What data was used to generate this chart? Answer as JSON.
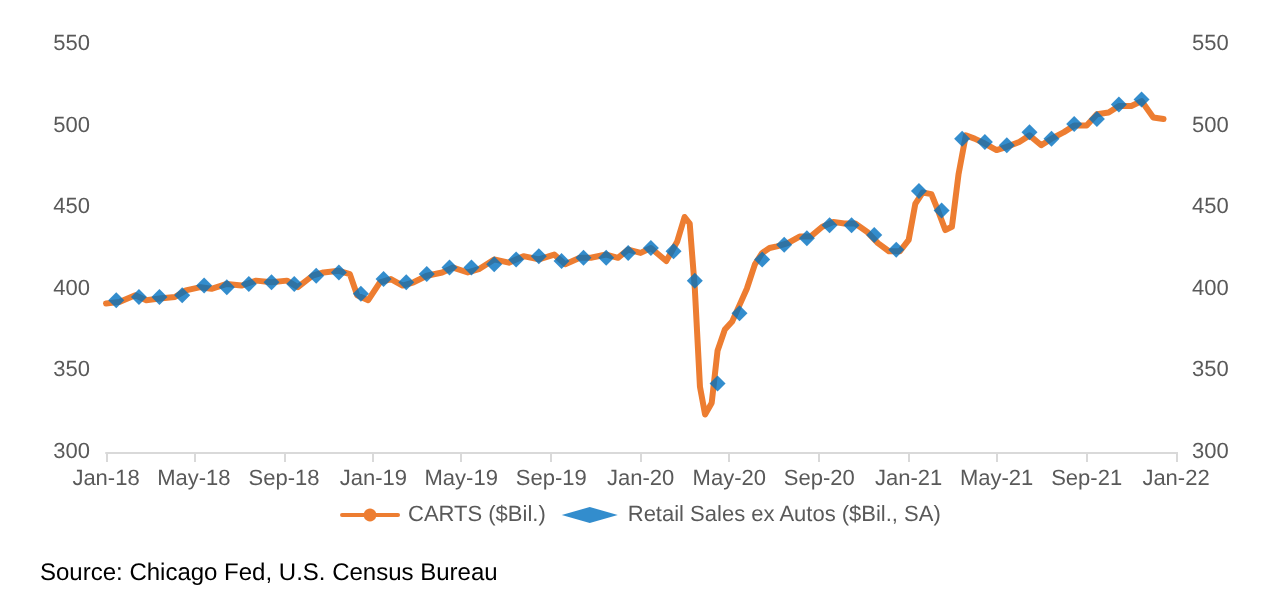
{
  "chart_data": {
    "type": "line",
    "xlim": [
      "2018-01",
      "2022-01"
    ],
    "xticks": [
      {
        "value": "2018-01",
        "label": "Jan-18"
      },
      {
        "value": "2018-05",
        "label": "May-18"
      },
      {
        "value": "2018-09",
        "label": "Sep-18"
      },
      {
        "value": "2019-01",
        "label": "Jan-19"
      },
      {
        "value": "2019-05",
        "label": "May-19"
      },
      {
        "value": "2019-09",
        "label": "Sep-19"
      },
      {
        "value": "2020-01",
        "label": "Jan-20"
      },
      {
        "value": "2020-05",
        "label": "May-20"
      },
      {
        "value": "2020-09",
        "label": "Sep-20"
      },
      {
        "value": "2021-01",
        "label": "Jan-21"
      },
      {
        "value": "2021-05",
        "label": "May-21"
      },
      {
        "value": "2021-09",
        "label": "Sep-21"
      },
      {
        "value": "2022-01",
        "label": "Jan-22"
      }
    ],
    "ylim": [
      300,
      550
    ],
    "yticks": [
      300,
      350,
      400,
      450,
      500,
      550
    ],
    "y2lim": [
      300,
      550
    ],
    "y2ticks": [
      300,
      350,
      400,
      450,
      500,
      550
    ],
    "grid": false,
    "legend": "bottom",
    "annotations": [
      "Source: Chicago Fed, U.S. Census Bureau"
    ],
    "series": [
      {
        "name": "CARTS ($Bil.)",
        "color": "#ed7d31",
        "marker": "none",
        "x": [
          "2018-01-01",
          "2018-01-20",
          "2018-02-10",
          "2018-02-25",
          "2018-03-15",
          "2018-04-05",
          "2018-04-20",
          "2018-05-10",
          "2018-05-25",
          "2018-06-15",
          "2018-07-05",
          "2018-07-25",
          "2018-08-15",
          "2018-09-05",
          "2018-09-20",
          "2018-10-10",
          "2018-10-25",
          "2018-11-15",
          "2018-11-30",
          "2018-12-10",
          "2018-12-25",
          "2019-01-10",
          "2019-01-25",
          "2019-02-10",
          "2019-02-25",
          "2019-03-15",
          "2019-04-05",
          "2019-04-20",
          "2019-05-10",
          "2019-05-25",
          "2019-06-15",
          "2019-07-05",
          "2019-07-25",
          "2019-08-15",
          "2019-09-05",
          "2019-09-20",
          "2019-10-10",
          "2019-10-25",
          "2019-11-15",
          "2019-12-01",
          "2019-12-15",
          "2020-01-01",
          "2020-01-15",
          "2020-02-05",
          "2020-02-20",
          "2020-03-01",
          "2020-03-08",
          "2020-03-15",
          "2020-03-22",
          "2020-03-29",
          "2020-04-07",
          "2020-04-15",
          "2020-04-25",
          "2020-05-05",
          "2020-05-15",
          "2020-05-25",
          "2020-06-05",
          "2020-06-15",
          "2020-06-25",
          "2020-07-05",
          "2020-07-20",
          "2020-08-05",
          "2020-08-20",
          "2020-09-05",
          "2020-09-20",
          "2020-10-05",
          "2020-10-20",
          "2020-11-05",
          "2020-11-20",
          "2020-12-05",
          "2020-12-20",
          "2021-01-01",
          "2021-01-10",
          "2021-01-20",
          "2021-02-01",
          "2021-02-10",
          "2021-02-20",
          "2021-03-01",
          "2021-03-10",
          "2021-03-20",
          "2021-04-01",
          "2021-04-15",
          "2021-05-01",
          "2021-05-15",
          "2021-06-01",
          "2021-06-15",
          "2021-07-01",
          "2021-07-15",
          "2021-08-01",
          "2021-08-15",
          "2021-09-01",
          "2021-09-15",
          "2021-10-01",
          "2021-10-15",
          "2021-11-01",
          "2021-11-15",
          "2021-12-01",
          "2021-12-15"
        ],
        "values": [
          391,
          392,
          396,
          393,
          394,
          395,
          399,
          401,
          400,
          403,
          402,
          405,
          404,
          405,
          401,
          408,
          410,
          411,
          409,
          396,
          393,
          404,
          406,
          402,
          404,
          408,
          410,
          413,
          410,
          412,
          418,
          416,
          420,
          418,
          421,
          415,
          419,
          419,
          421,
          419,
          424,
          422,
          425,
          417,
          429,
          444,
          440,
          400,
          340,
          323,
          330,
          362,
          375,
          380,
          390,
          400,
          415,
          422,
          425,
          426,
          428,
          432,
          432,
          438,
          441,
          440,
          440,
          435,
          428,
          423,
          423,
          430,
          452,
          459,
          458,
          448,
          436,
          438,
          470,
          494,
          492,
          489,
          485,
          487,
          490,
          494,
          488,
          492,
          496,
          500,
          500,
          507,
          508,
          512,
          512,
          515,
          505,
          504
        ]
      },
      {
        "name": "Retail Sales ex Autos ($Bil., SA)",
        "type": "scatter",
        "color": "#0070c0",
        "marker": "diamond",
        "x": [
          "2018-01-15",
          "2018-02-15",
          "2018-03-15",
          "2018-04-15",
          "2018-05-15",
          "2018-06-15",
          "2018-07-15",
          "2018-08-15",
          "2018-09-15",
          "2018-10-15",
          "2018-11-15",
          "2018-12-15",
          "2019-01-15",
          "2019-02-15",
          "2019-03-15",
          "2019-04-15",
          "2019-05-15",
          "2019-06-15",
          "2019-07-15",
          "2019-08-15",
          "2019-09-15",
          "2019-10-15",
          "2019-11-15",
          "2019-12-15",
          "2020-01-15",
          "2020-02-15",
          "2020-03-15",
          "2020-04-15",
          "2020-05-15",
          "2020-06-15",
          "2020-07-15",
          "2020-08-15",
          "2020-09-15",
          "2020-10-15",
          "2020-11-15",
          "2020-12-15",
          "2021-01-15",
          "2021-02-15",
          "2021-03-15",
          "2021-04-15",
          "2021-05-15",
          "2021-06-15",
          "2021-07-15",
          "2021-08-15",
          "2021-09-15",
          "2021-10-15",
          "2021-11-15"
        ],
        "values": [
          393,
          395,
          395,
          396,
          402,
          401,
          403,
          404,
          403,
          408,
          410,
          397,
          406,
          404,
          409,
          413,
          413,
          415,
          418,
          420,
          417,
          419,
          419,
          422,
          425,
          423,
          405,
          342,
          385,
          418,
          427,
          431,
          439,
          439,
          433,
          424,
          460,
          448,
          492,
          490,
          488,
          496,
          492,
          501,
          504,
          513,
          516
        ]
      }
    ]
  }
}
